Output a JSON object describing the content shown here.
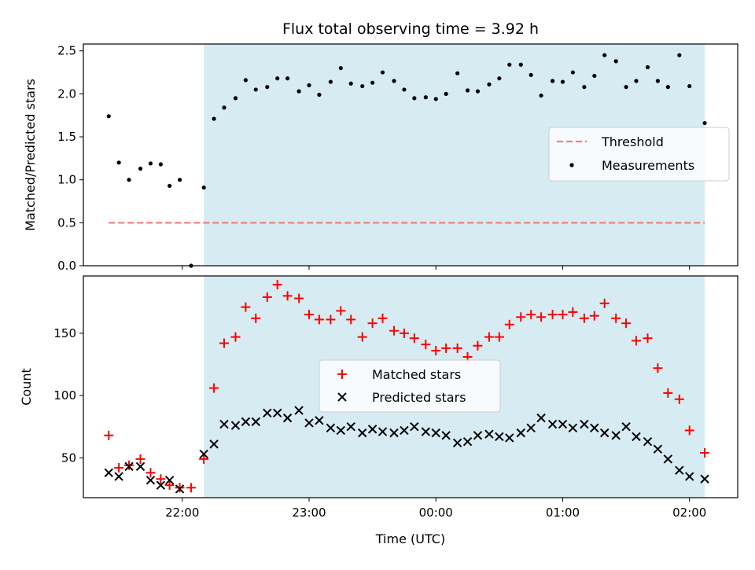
{
  "title": "Flux total observing time = 3.92 h",
  "colors": {
    "span": "#add8e6",
    "threshold": "#f08080",
    "measurement": "#000000",
    "matched": "#ff0000",
    "predicted": "#000000"
  },
  "chart_data": [
    {
      "type": "scatter",
      "ylabel": "Matched/Predicted stars",
      "xlim_hours": [
        -2.78,
        2.38
      ],
      "ylim": [
        0,
        2.58
      ],
      "yticks": [
        "0.0",
        "0.5",
        "1.0",
        "1.5",
        "2.0",
        "2.5"
      ],
      "grid": false,
      "legend_position": "center-right",
      "shaded_span_hours": [
        -1.83,
        2.12
      ],
      "threshold": {
        "name": "Threshold",
        "y": 0.5,
        "x_hours": [
          -2.58,
          2.12
        ],
        "style": "dashed"
      },
      "series": [
        {
          "name": "Measurements",
          "x_hours": [
            -2.58,
            -2.5,
            -2.42,
            -2.33,
            -2.25,
            -2.17,
            -2.1,
            -2.02,
            -1.93,
            -1.83,
            -1.75,
            -1.67,
            -1.58,
            -1.5,
            -1.42,
            -1.33,
            -1.25,
            -1.17,
            -1.08,
            -1.0,
            -0.92,
            -0.83,
            -0.75,
            -0.67,
            -0.58,
            -0.5,
            -0.42,
            -0.33,
            -0.25,
            -0.17,
            -0.08,
            0.0,
            0.08,
            0.17,
            0.25,
            0.33,
            0.42,
            0.5,
            0.58,
            0.67,
            0.75,
            0.83,
            0.92,
            1.0,
            1.08,
            1.17,
            1.25,
            1.33,
            1.42,
            1.5,
            1.58,
            1.67,
            1.75,
            1.83,
            1.92,
            2.0,
            2.12
          ],
          "y": [
            1.74,
            1.2,
            1.0,
            1.13,
            1.19,
            1.18,
            0.93,
            1.0,
            0.0,
            0.91,
            1.71,
            1.84,
            1.95,
            2.16,
            2.05,
            2.08,
            2.18,
            2.18,
            2.03,
            2.1,
            1.99,
            2.14,
            2.3,
            2.12,
            2.09,
            2.13,
            2.25,
            2.15,
            2.05,
            1.95,
            1.96,
            1.94,
            2.0,
            2.24,
            2.04,
            2.03,
            2.11,
            2.18,
            2.34,
            2.34,
            2.22,
            1.98,
            2.15,
            2.14,
            2.25,
            2.08,
            2.21,
            2.45,
            2.38,
            2.08,
            2.15,
            2.31,
            2.15,
            2.08,
            2.45,
            2.09,
            1.66
          ]
        }
      ]
    },
    {
      "type": "scatter",
      "xlabel": "Time (UTC)",
      "ylabel": "Count",
      "xlim_hours": [
        -2.78,
        2.38
      ],
      "ylim": [
        18,
        196
      ],
      "yticks": [
        "50",
        "100",
        "150"
      ],
      "xtick_hours": [
        -2.0,
        -1.0,
        0.0,
        1.0,
        2.0
      ],
      "xtick_labels": [
        "22:00",
        "23:00",
        "00:00",
        "01:00",
        "02:00"
      ],
      "grid": false,
      "legend_position": "center",
      "shaded_span_hours": [
        -1.83,
        2.12
      ],
      "series": [
        {
          "name": "Matched stars",
          "marker": "plus",
          "x_hours": [
            -2.58,
            -2.5,
            -2.42,
            -2.33,
            -2.25,
            -2.17,
            -2.1,
            -2.02,
            -1.93,
            -1.83,
            -1.75,
            -1.67,
            -1.58,
            -1.5,
            -1.42,
            -1.33,
            -1.25,
            -1.17,
            -1.08,
            -1.0,
            -0.92,
            -0.83,
            -0.75,
            -0.67,
            -0.58,
            -0.5,
            -0.42,
            -0.33,
            -0.25,
            -0.17,
            -0.08,
            0.0,
            0.08,
            0.17,
            0.25,
            0.33,
            0.42,
            0.5,
            0.58,
            0.67,
            0.75,
            0.83,
            0.92,
            1.0,
            1.08,
            1.17,
            1.25,
            1.33,
            1.42,
            1.5,
            1.58,
            1.67,
            1.75,
            1.83,
            1.92,
            2.0,
            2.12
          ],
          "y": [
            68,
            42,
            44,
            49,
            38,
            33,
            28,
            26,
            26,
            49,
            106,
            142,
            147,
            171,
            162,
            179,
            189,
            180,
            178,
            165,
            161,
            161,
            168,
            161,
            147,
            158,
            162,
            152,
            150,
            146,
            141,
            136,
            138,
            138,
            131,
            140,
            147,
            147,
            157,
            163,
            165,
            163,
            165,
            165,
            167,
            162,
            164,
            174,
            162,
            158,
            144,
            146,
            122,
            102,
            97,
            72,
            54
          ]
        },
        {
          "name": "Predicted stars",
          "marker": "x",
          "x_hours": [
            -2.58,
            -2.5,
            -2.42,
            -2.33,
            -2.25,
            -2.17,
            -2.1,
            -2.02,
            -1.83,
            -1.75,
            -1.67,
            -1.58,
            -1.5,
            -1.42,
            -1.33,
            -1.25,
            -1.17,
            -1.08,
            -1.0,
            -0.92,
            -0.83,
            -0.75,
            -0.67,
            -0.58,
            -0.5,
            -0.42,
            -0.33,
            -0.25,
            -0.17,
            -0.08,
            0.0,
            0.08,
            0.17,
            0.25,
            0.33,
            0.42,
            0.5,
            0.58,
            0.67,
            0.75,
            0.83,
            0.92,
            1.0,
            1.08,
            1.17,
            1.25,
            1.33,
            1.42,
            1.5,
            1.58,
            1.67,
            1.75,
            1.83,
            1.92,
            2.0,
            2.12
          ],
          "y": [
            38,
            35,
            43,
            43,
            32,
            28,
            32,
            25,
            53,
            61,
            77,
            76,
            79,
            79,
            86,
            86,
            82,
            88,
            78,
            80,
            74,
            72,
            75,
            70,
            73,
            71,
            70,
            72,
            75,
            71,
            70,
            68,
            62,
            63,
            68,
            69,
            67,
            66,
            70,
            74,
            82,
            77,
            77,
            74,
            77,
            74,
            70,
            68,
            75,
            67,
            63,
            57,
            49,
            40,
            35,
            33
          ]
        }
      ]
    }
  ]
}
